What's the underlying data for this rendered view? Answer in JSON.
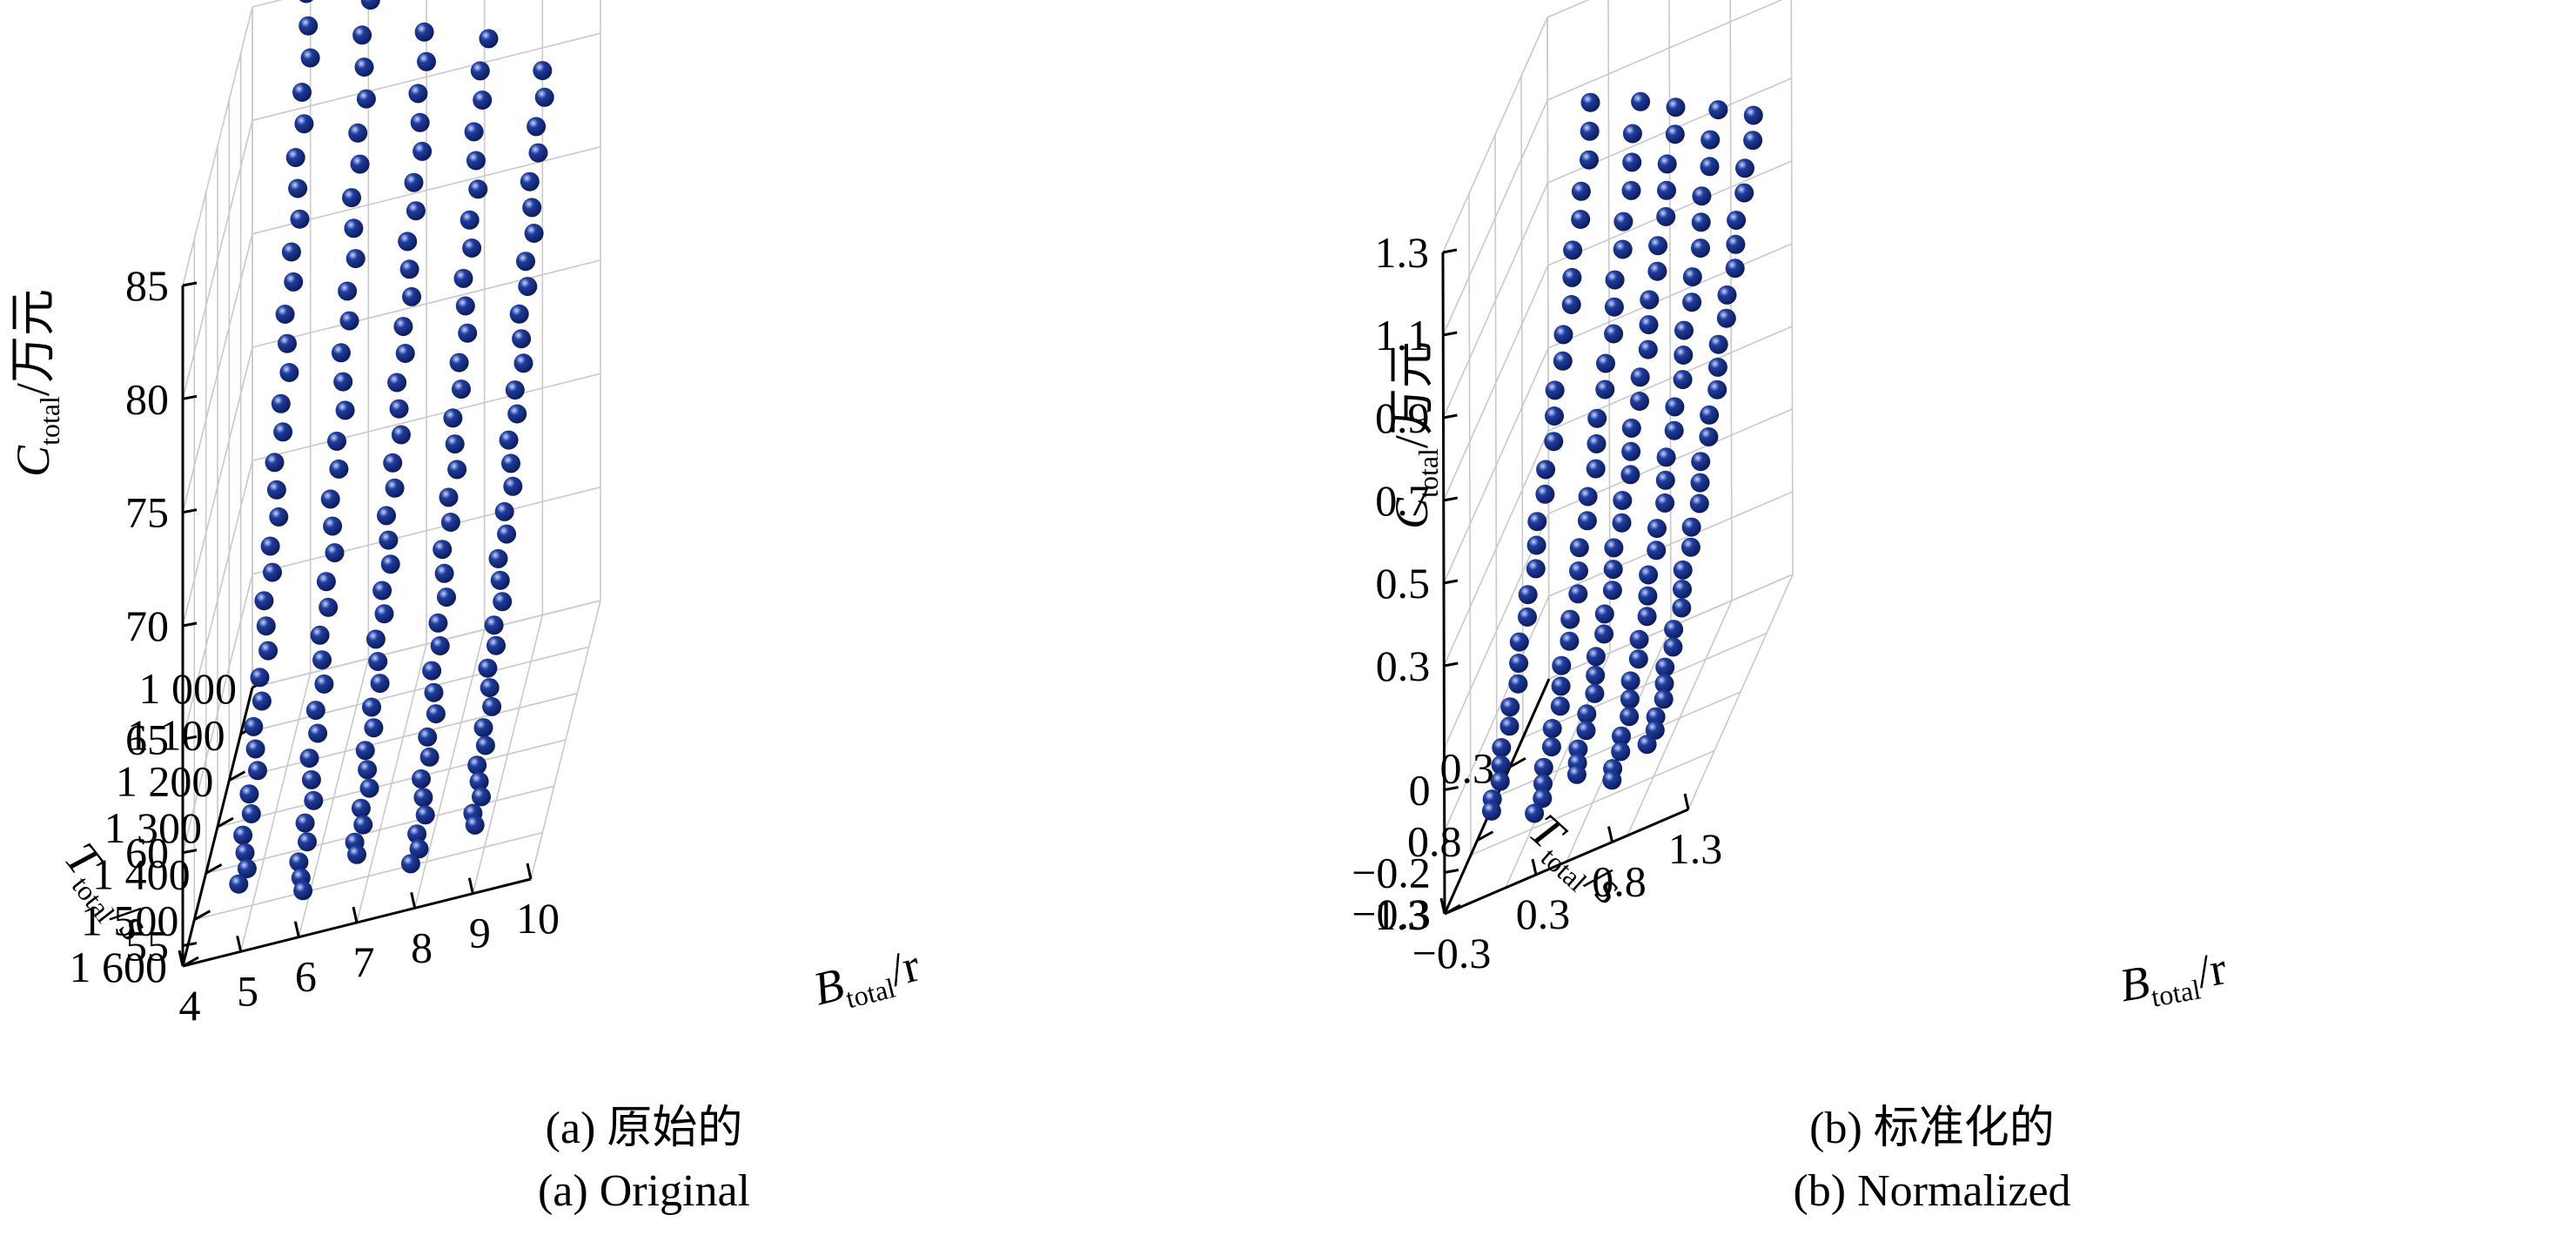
{
  "chart_data": [
    {
      "type": "scatter",
      "projection": "3d",
      "caption_cn": "(a) 原始的",
      "caption_en": "(a) Original",
      "z_label": {
        "main": "C",
        "sub": "total",
        "unit": "/万元"
      },
      "y_label": {
        "main": "T",
        "sub": "total",
        "unit": "/s"
      },
      "x_label": {
        "main": "B",
        "sub": "total",
        "unit": "/r"
      },
      "z_ticks": [
        "85",
        "80",
        "75",
        "70",
        "65",
        "60",
        "55"
      ],
      "y_ticks": [
        "1 000",
        "1 100",
        "1 200",
        "1 300",
        "1 400",
        "1 500",
        "1 600"
      ],
      "x_ticks": [
        "4",
        "5",
        "6",
        "7",
        "8",
        "9",
        "10"
      ],
      "xlim": [
        4,
        10
      ],
      "ylim": [
        1000,
        1600
      ],
      "zlim": [
        55,
        85
      ],
      "grid": true,
      "marker_color": "#1f3d9e",
      "series": [
        {
          "x": 5,
          "y": [
            1000,
            1600
          ],
          "z": [
            85,
            58
          ]
        },
        {
          "x": 6,
          "y": [
            1000,
            1600
          ],
          "z": [
            84,
            57
          ]
        },
        {
          "x": 7,
          "y": [
            1000,
            1600
          ],
          "z": [
            82,
            58
          ]
        },
        {
          "x": 8,
          "y": [
            1000,
            1600
          ],
          "z": [
            81,
            57
          ]
        },
        {
          "x": 9,
          "y": [
            1000,
            1600
          ],
          "z": [
            79,
            58
          ]
        }
      ]
    },
    {
      "type": "scatter",
      "projection": "3d",
      "caption_cn": "(b) 标准化的",
      "caption_en": "(b) Normalized",
      "z_label": {
        "main": "C",
        "sub": "total",
        "unit": "/万元"
      },
      "y_label": {
        "main": "T",
        "sub": "total",
        "unit": "/s"
      },
      "x_label": {
        "main": "B",
        "sub": "total",
        "unit": "/r"
      },
      "z_ticks": [
        "1.3",
        "1.1",
        "0.9",
        "0.7",
        "0.5",
        "0.3",
        "0",
        "−0.2"
      ],
      "z_bottom_tick": "−0.3",
      "y_ticks": [
        "0.3",
        "0.8",
        "1.3"
      ],
      "x_ticks": [
        "−0.3",
        "0.3",
        "0.8",
        "1.3"
      ],
      "xlim": [
        -0.3,
        1.3
      ],
      "ylim": [
        -0.3,
        1.3
      ],
      "zlim": [
        -0.3,
        1.3
      ],
      "grid": true,
      "marker_color": "#1f3d9e",
      "series": [
        {
          "x": 0.0,
          "y": [
            -0.3,
            1.3
          ],
          "z": [
            1.05,
            -0.1
          ]
        },
        {
          "x": 0.3,
          "y": [
            -0.3,
            1.3
          ],
          "z": [
            1.0,
            -0.15
          ]
        },
        {
          "x": 0.55,
          "y": [
            -0.3,
            1.3
          ],
          "z": [
            0.95,
            -0.1
          ]
        },
        {
          "x": 0.8,
          "y": [
            -0.3,
            1.3
          ],
          "z": [
            0.9,
            -0.15
          ]
        },
        {
          "x": 1.05,
          "y": [
            -0.3,
            1.3
          ],
          "z": [
            0.85,
            -0.1
          ]
        }
      ]
    }
  ]
}
